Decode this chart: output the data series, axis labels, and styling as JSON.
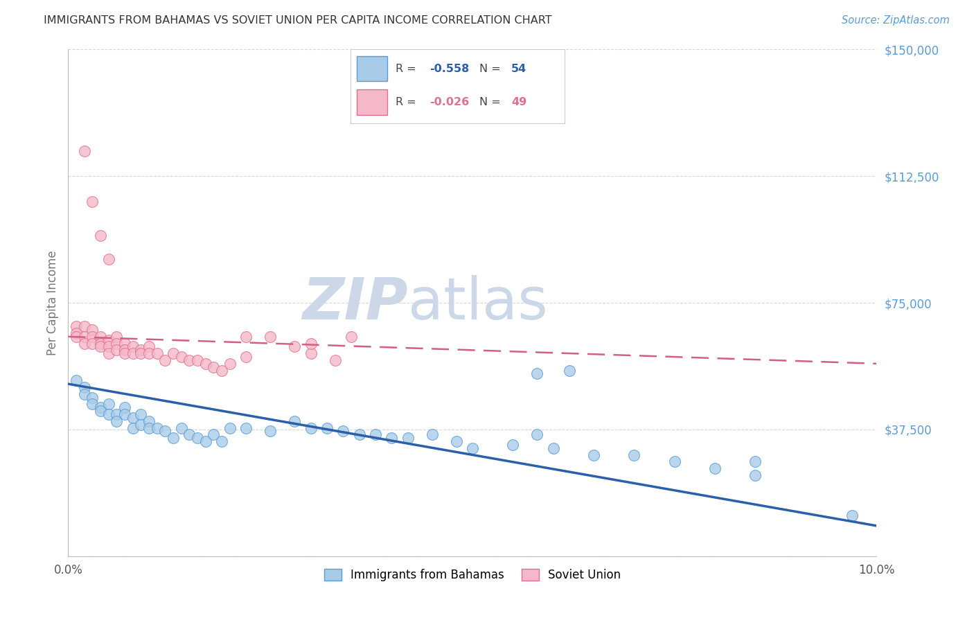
{
  "title": "IMMIGRANTS FROM BAHAMAS VS SOVIET UNION PER CAPITA INCOME CORRELATION CHART",
  "source": "Source: ZipAtlas.com",
  "ylabel": "Per Capita Income",
  "xlim": [
    0,
    0.1
  ],
  "ylim": [
    0,
    150000
  ],
  "yticks": [
    0,
    37500,
    75000,
    112500,
    150000
  ],
  "ytick_labels": [
    "",
    "$37,500",
    "$75,000",
    "$112,500",
    "$150,000"
  ],
  "xticks": [
    0.0,
    0.02,
    0.04,
    0.06,
    0.08,
    0.1
  ],
  "xtick_labels": [
    "0.0%",
    "",
    "",
    "",
    "",
    "10.0%"
  ],
  "series1_label": "Immigrants from Bahamas",
  "series1_color": "#a8cce8",
  "series1_edge": "#5b9bd5",
  "series1_R": -0.558,
  "series1_N": 54,
  "series2_label": "Soviet Union",
  "series2_color": "#f5b8c8",
  "series2_edge": "#e07090",
  "series2_R": -0.026,
  "series2_N": 49,
  "watermark_zip": "ZIP",
  "watermark_atlas": "atlas",
  "watermark_color": "#ccd8e8",
  "background_color": "#ffffff",
  "grid_color": "#cccccc",
  "title_color": "#333333",
  "axis_label_color": "#777777",
  "ytick_color": "#5b9bd5",
  "regression_color1": "#2a5faa",
  "regression_color2": "#d06080",
  "series1_x": [
    0.001,
    0.002,
    0.002,
    0.003,
    0.003,
    0.004,
    0.004,
    0.005,
    0.005,
    0.006,
    0.006,
    0.007,
    0.007,
    0.008,
    0.008,
    0.009,
    0.009,
    0.01,
    0.01,
    0.011,
    0.012,
    0.013,
    0.014,
    0.015,
    0.016,
    0.017,
    0.018,
    0.019,
    0.02,
    0.022,
    0.025,
    0.028,
    0.03,
    0.032,
    0.034,
    0.036,
    0.038,
    0.04,
    0.042,
    0.045,
    0.048,
    0.05,
    0.055,
    0.058,
    0.06,
    0.065,
    0.07,
    0.075,
    0.08,
    0.085,
    0.058,
    0.062,
    0.085,
    0.097
  ],
  "series1_y": [
    52000,
    50000,
    48000,
    47000,
    45000,
    44000,
    43000,
    45000,
    42000,
    42000,
    40000,
    44000,
    42000,
    41000,
    38000,
    42000,
    39000,
    40000,
    38000,
    38000,
    37000,
    35000,
    38000,
    36000,
    35000,
    34000,
    36000,
    34000,
    38000,
    38000,
    37000,
    40000,
    38000,
    38000,
    37000,
    36000,
    36000,
    35000,
    35000,
    36000,
    34000,
    32000,
    33000,
    36000,
    32000,
    30000,
    30000,
    28000,
    26000,
    24000,
    54000,
    55000,
    28000,
    12000
  ],
  "series2_x": [
    0.001,
    0.001,
    0.001,
    0.002,
    0.002,
    0.002,
    0.003,
    0.003,
    0.003,
    0.004,
    0.004,
    0.004,
    0.005,
    0.005,
    0.005,
    0.006,
    0.006,
    0.006,
    0.007,
    0.007,
    0.007,
    0.008,
    0.008,
    0.009,
    0.009,
    0.01,
    0.01,
    0.011,
    0.012,
    0.013,
    0.014,
    0.015,
    0.016,
    0.017,
    0.018,
    0.019,
    0.02,
    0.022,
    0.025,
    0.028,
    0.03,
    0.033,
    0.035,
    0.022,
    0.03,
    0.002,
    0.003,
    0.004,
    0.005
  ],
  "series2_y": [
    68000,
    66000,
    65000,
    68000,
    65000,
    63000,
    67000,
    65000,
    63000,
    65000,
    63000,
    62000,
    64000,
    62000,
    60000,
    65000,
    63000,
    61000,
    63000,
    61000,
    60000,
    62000,
    60000,
    61000,
    60000,
    62000,
    60000,
    60000,
    58000,
    60000,
    59000,
    58000,
    58000,
    57000,
    56000,
    55000,
    57000,
    59000,
    65000,
    62000,
    60000,
    58000,
    65000,
    65000,
    63000,
    120000,
    105000,
    95000,
    88000
  ]
}
